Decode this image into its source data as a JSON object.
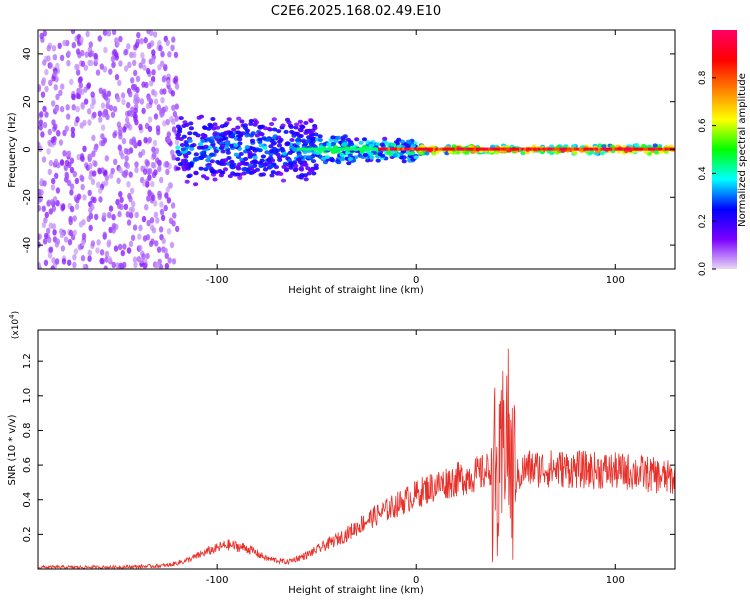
{
  "title": "C2E6.2025.168.02.49.E10",
  "chart_data": [
    {
      "type": "heatmap",
      "xlabel": "Height of straight line (km)",
      "ylabel": "Frequency (Hz)",
      "xlim": [
        -190,
        130
      ],
      "ylim": [
        -50,
        50
      ],
      "x_ticks": [
        -100,
        0,
        100
      ],
      "x_tick_labels": [
        "-100",
        "0",
        "100"
      ],
      "y_ticks": [
        -40,
        -20,
        0,
        20,
        40
      ],
      "y_tick_labels": [
        "-40",
        "-20",
        "0",
        "20",
        "40"
      ],
      "colorbar": {
        "label": "Normalized spectral amplitude",
        "range": [
          0,
          1
        ],
        "ticks": [
          0,
          0.2,
          0.4,
          0.6,
          0.8
        ],
        "tick_labels": [
          "0.0",
          "0.2",
          "0.4",
          "0.6",
          "0.8"
        ],
        "colors": [
          "#e8d8f4",
          "#7a00ff",
          "#0000ff",
          "#00ffff",
          "#00ff00",
          "#ffff00",
          "#ff8000",
          "#ff0000",
          "#ff0066"
        ]
      },
      "regions": [
        {
          "x": [
            -190,
            -120
          ],
          "freq": [
            -50,
            50
          ],
          "amplitude": 0.1
        },
        {
          "x": [
            -120,
            -50
          ],
          "freq": [
            -15,
            15
          ],
          "amplitude": 0.35
        },
        {
          "x": [
            -50,
            0
          ],
          "freq": [
            -6,
            6
          ],
          "amplitude": 0.5
        },
        {
          "x": [
            0,
            130
          ],
          "freq": [
            -2,
            2
          ],
          "amplitude": 0.9
        }
      ],
      "grid": false
    },
    {
      "type": "line",
      "xlabel": "Height of straight line (km)",
      "ylabel": "SNR (10 * v/v)",
      "y_multiplier": "(x10",
      "y_multiplier_exp": "4",
      "xlim": [
        -190,
        130
      ],
      "ylim": [
        0,
        1.38
      ],
      "x_ticks": [
        -100,
        0,
        100
      ],
      "x_tick_labels": [
        "-100",
        "0",
        "100"
      ],
      "y_ticks": [
        0.2,
        0.4,
        0.6,
        0.8,
        1.0,
        1.2
      ],
      "y_tick_labels": [
        "0.2",
        "0.4",
        "0.6",
        "0.8",
        "1.0",
        "1.2"
      ],
      "color": "#e8302a",
      "series": [
        {
          "x": [
            -190,
            -150,
            -125,
            -115,
            -105,
            -95,
            -85,
            -75,
            -65,
            -55,
            -45,
            -35,
            -25,
            -15,
            -5,
            5,
            15,
            25,
            35,
            38,
            42,
            45,
            48,
            55,
            70,
            90,
            110,
            130
          ],
          "y": [
            0.01,
            0.01,
            0.02,
            0.05,
            0.1,
            0.14,
            0.12,
            0.06,
            0.04,
            0.08,
            0.14,
            0.2,
            0.28,
            0.34,
            0.4,
            0.46,
            0.5,
            0.53,
            0.56,
            0.6,
            0.4,
            0.9,
            0.5,
            0.58,
            0.58,
            0.57,
            0.56,
            0.52
          ]
        }
      ],
      "grid": false
    }
  ]
}
